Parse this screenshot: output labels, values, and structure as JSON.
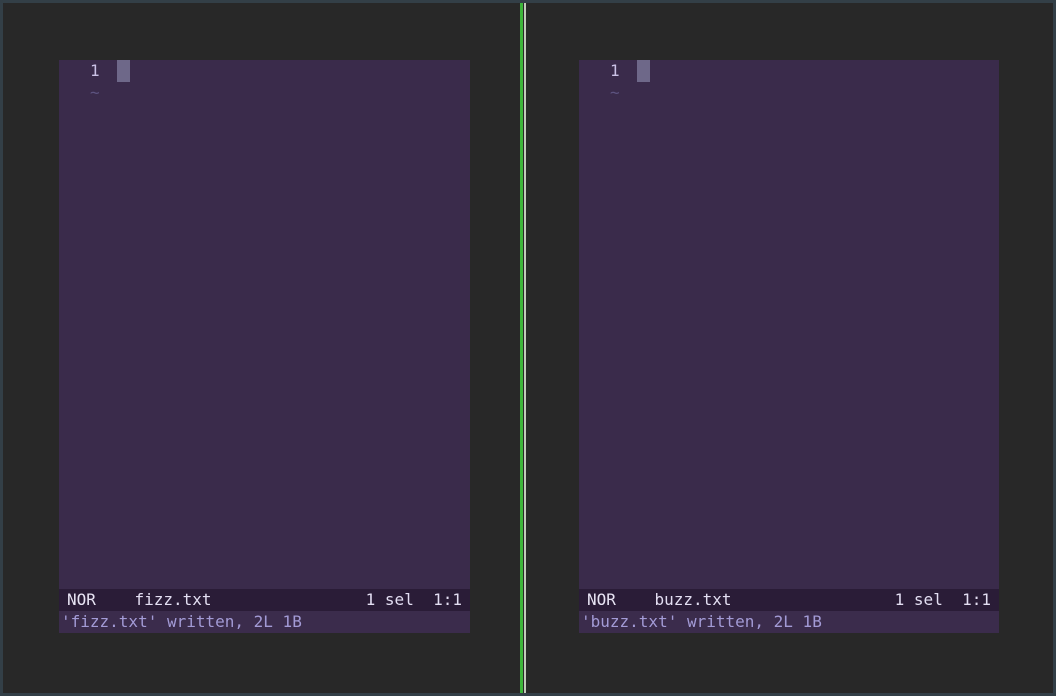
{
  "terminal": {
    "background": "#282828",
    "frame_border_color": "#333f47",
    "divider": {
      "active_color": "#3db53a",
      "inactive_color": "#c2c9ba"
    }
  },
  "editor": {
    "background": "#3a2b4b",
    "statusline_background": "#2a1c37",
    "cursor_color": "#6e6889",
    "message_color": "#a39bd6"
  },
  "panes": [
    {
      "line_number": "1",
      "eob_marker": "~",
      "mode": "NOR",
      "filename": "fizz.txt",
      "selection_count": "1 sel",
      "cursor_position": "1:1",
      "message": "'fizz.txt' written, 2L 1B"
    },
    {
      "line_number": "1",
      "eob_marker": "~",
      "mode": "NOR",
      "filename": "buzz.txt",
      "selection_count": "1 sel",
      "cursor_position": "1:1",
      "message": "'buzz.txt' written, 2L 1B"
    }
  ]
}
